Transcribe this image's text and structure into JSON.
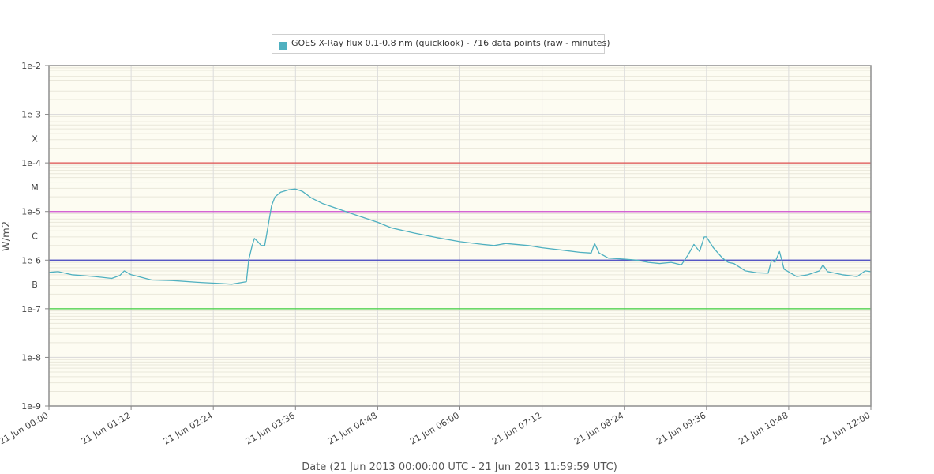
{
  "chart_data": {
    "type": "line",
    "title": "",
    "legend": {
      "entries": [
        "GOES X-Ray flux 0.1-0.8 nm (quicklook) - 716 data points (raw - minutes)"
      ],
      "placement": "top-center"
    },
    "xlabel": "Date (21 Jun 2013 00:00:00 UTC - 21 Jun 2013 11:59:59 UTC)",
    "ylabel": "W/m2",
    "y_scale": "log",
    "ylim": [
      1e-09,
      0.01
    ],
    "y_ticks": [
      "1e-2",
      "1e-3",
      "1e-4",
      "1e-5",
      "1e-6",
      "1e-7",
      "1e-8",
      "1e-9"
    ],
    "class_labels": [
      {
        "label": "X",
        "value": 0.000316
      },
      {
        "label": "M",
        "value": 3.16e-05
      },
      {
        "label": "C",
        "value": 3.16e-06
      },
      {
        "label": "B",
        "value": 3.16e-07
      }
    ],
    "x_ticks": [
      "21 Jun 00:00",
      "21 Jun 01:12",
      "21 Jun 02:24",
      "21 Jun 03:36",
      "21 Jun 04:48",
      "21 Jun 06:00",
      "21 Jun 07:12",
      "21 Jun 08:24",
      "21 Jun 09:36",
      "21 Jun 10:48",
      "21 Jun 12:00"
    ],
    "xlim": [
      "2013-06-21 00:00",
      "2013-06-21 12:00"
    ],
    "grid": true,
    "reference_lines": [
      {
        "value": 0.0001,
        "color": "#e05050"
      },
      {
        "value": 1e-05,
        "color": "#d050d0"
      },
      {
        "value": 1e-06,
        "color": "#4040c0"
      },
      {
        "value": 1e-07,
        "color": "#40d040"
      }
    ],
    "series": [
      {
        "name": "GOES X-Ray flux 0.1-0.8 nm (quicklook) - 716 data points (raw - minutes)",
        "color": "#4fb0c0",
        "points": [
          [
            "00:00",
            5.6e-07
          ],
          [
            "00:08",
            5.8e-07
          ],
          [
            "00:20",
            5e-07
          ],
          [
            "00:40",
            4.6e-07
          ],
          [
            "00:55",
            4.2e-07
          ],
          [
            "01:02",
            4.8e-07
          ],
          [
            "01:06",
            6e-07
          ],
          [
            "01:12",
            5e-07
          ],
          [
            "01:30",
            3.9e-07
          ],
          [
            "01:48",
            3.8e-07
          ],
          [
            "02:10",
            3.5e-07
          ],
          [
            "02:30",
            3.3e-07
          ],
          [
            "02:40",
            3.2e-07
          ],
          [
            "02:50",
            3.5e-07
          ],
          [
            "02:53",
            3.6e-07
          ],
          [
            "02:55",
            1e-06
          ],
          [
            "02:58",
            2e-06
          ],
          [
            "03:00",
            2.8e-06
          ],
          [
            "03:03",
            2.4e-06
          ],
          [
            "03:06",
            2e-06
          ],
          [
            "03:09",
            2e-06
          ],
          [
            "03:12",
            5e-06
          ],
          [
            "03:15",
            1.3e-05
          ],
          [
            "03:18",
            2e-05
          ],
          [
            "03:23",
            2.5e-05
          ],
          [
            "03:30",
            2.8e-05
          ],
          [
            "03:36",
            2.9e-05
          ],
          [
            "03:42",
            2.6e-05
          ],
          [
            "03:50",
            1.9e-05
          ],
          [
            "04:00",
            1.45e-05
          ],
          [
            "04:15",
            1.1e-05
          ],
          [
            "04:30",
            8.3e-06
          ],
          [
            "04:48",
            6e-06
          ],
          [
            "05:00",
            4.6e-06
          ],
          [
            "05:20",
            3.6e-06
          ],
          [
            "05:40",
            2.9e-06
          ],
          [
            "06:00",
            2.4e-06
          ],
          [
            "06:20",
            2.1e-06
          ],
          [
            "06:30",
            2e-06
          ],
          [
            "06:40",
            2.2e-06
          ],
          [
            "07:00",
            2e-06
          ],
          [
            "07:12",
            1.8e-06
          ],
          [
            "07:30",
            1.6e-06
          ],
          [
            "07:45",
            1.45e-06
          ],
          [
            "07:55",
            1.4e-06
          ],
          [
            "07:58",
            2.2e-06
          ],
          [
            "08:02",
            1.4e-06
          ],
          [
            "08:10",
            1.1e-06
          ],
          [
            "08:24",
            1.05e-06
          ],
          [
            "08:35",
            1e-06
          ],
          [
            "08:45",
            9e-07
          ],
          [
            "08:55",
            8.5e-07
          ],
          [
            "09:05",
            9e-07
          ],
          [
            "09:14",
            8e-07
          ],
          [
            "09:20",
            1.3e-06
          ],
          [
            "09:25",
            2.1e-06
          ],
          [
            "09:30",
            1.5e-06
          ],
          [
            "09:34",
            3e-06
          ],
          [
            "09:36",
            3e-06
          ],
          [
            "09:42",
            1.8e-06
          ],
          [
            "09:50",
            1.1e-06
          ],
          [
            "09:55",
            9e-07
          ],
          [
            "10:00",
            8.5e-07
          ],
          [
            "10:10",
            6e-07
          ],
          [
            "10:20",
            5.5e-07
          ],
          [
            "10:30",
            5.4e-07
          ],
          [
            "10:33",
            1e-06
          ],
          [
            "10:36",
            9e-07
          ],
          [
            "10:40",
            1.5e-06
          ],
          [
            "10:44",
            6.5e-07
          ],
          [
            "10:55",
            4.6e-07
          ],
          [
            "11:05",
            5e-07
          ],
          [
            "11:15",
            6e-07
          ],
          [
            "11:18",
            8e-07
          ],
          [
            "11:22",
            5.8e-07
          ],
          [
            "11:35",
            5e-07
          ],
          [
            "11:48",
            4.6e-07
          ],
          [
            "11:55",
            6e-07
          ],
          [
            "12:00",
            5.8e-07
          ]
        ]
      }
    ]
  }
}
